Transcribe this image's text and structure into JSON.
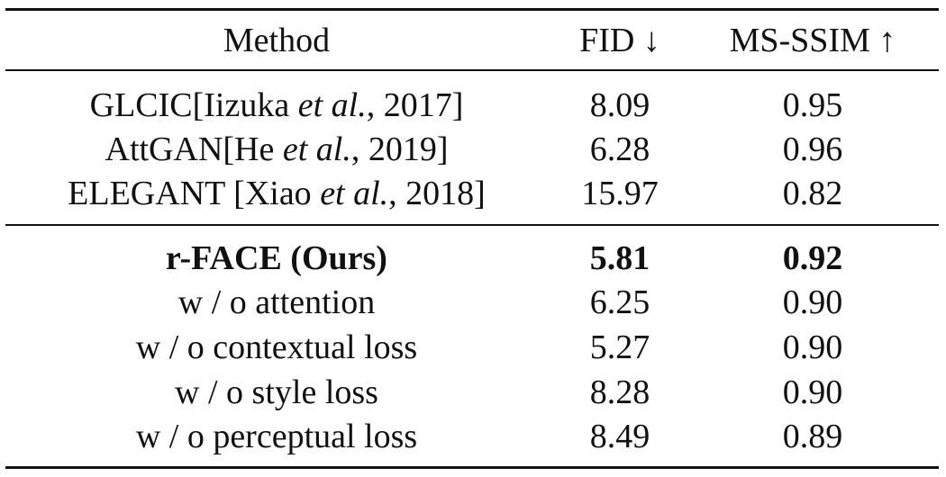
{
  "table": {
    "header": [
      "Method",
      "FID ↓",
      "MS-SSIM ↑"
    ],
    "groups": [
      {
        "rows": [
          {
            "method": [
              "GLCIC[Iizuka ",
              "et al.",
              ", 2017]"
            ],
            "fid": "8.09",
            "ms_ssim": "0.95"
          },
          {
            "method": [
              "AttGAN[He ",
              "et al.",
              ", 2019]"
            ],
            "fid": "6.28",
            "ms_ssim": "0.96"
          },
          {
            "method": [
              "ELEGANT [Xiao ",
              "et al.",
              ", 2018]"
            ],
            "fid": "15.97",
            "ms_ssim": "0.82"
          }
        ]
      },
      {
        "rows": [
          {
            "method": [
              "r-FACE (Ours)"
            ],
            "fid": "5.81",
            "ms_ssim": "0.92",
            "bold": true
          },
          {
            "method": [
              "w / o attention"
            ],
            "fid": "6.25",
            "ms_ssim": "0.90"
          },
          {
            "method": [
              "w / o contextual loss"
            ],
            "fid": "5.27",
            "ms_ssim": "0.90"
          },
          {
            "method": [
              "w / o style loss"
            ],
            "fid": "8.28",
            "ms_ssim": "0.90"
          },
          {
            "method": [
              "w / o perceptual loss"
            ],
            "fid": "8.49",
            "ms_ssim": "0.89"
          }
        ]
      }
    ]
  }
}
